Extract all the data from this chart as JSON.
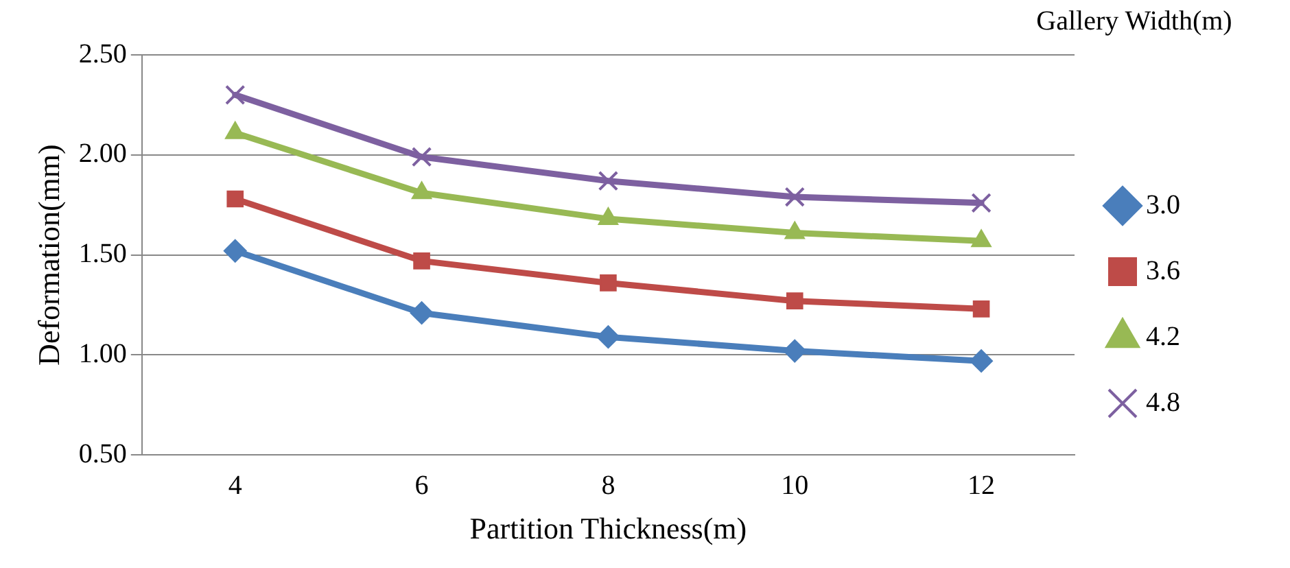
{
  "chart_data": {
    "type": "line",
    "xlabel": "Partition Thickness(m)",
    "ylabel": "Deformation(mm)",
    "legend_title": "Gallery Width(m)",
    "legend": "right",
    "categories": [
      "4",
      "6",
      "8",
      "10",
      "12"
    ],
    "series": [
      {
        "name": "3.0",
        "color": "#4a7ebb",
        "marker": "diamond",
        "values": [
          1.52,
          1.21,
          1.09,
          1.02,
          0.97
        ]
      },
      {
        "name": "3.6",
        "color": "#be4b48",
        "marker": "square",
        "values": [
          1.78,
          1.47,
          1.36,
          1.27,
          1.23
        ]
      },
      {
        "name": "4.2",
        "color": "#98b954",
        "marker": "triangle",
        "values": [
          2.11,
          1.81,
          1.68,
          1.61,
          1.57
        ]
      },
      {
        "name": "4.8",
        "color": "#7d60a0",
        "marker": "cross",
        "values": [
          2.3,
          1.99,
          1.87,
          1.79,
          1.76
        ]
      }
    ],
    "ylim": [
      0.5,
      2.5
    ],
    "yticks": [
      {
        "value": 0.5,
        "label": "0.50"
      },
      {
        "value": 1,
        "label": "1.00"
      },
      {
        "value": 1.5,
        "label": "1.50"
      },
      {
        "value": 2,
        "label": "2.00"
      },
      {
        "value": 2.5,
        "label": "2.50"
      }
    ],
    "grid": "y"
  }
}
